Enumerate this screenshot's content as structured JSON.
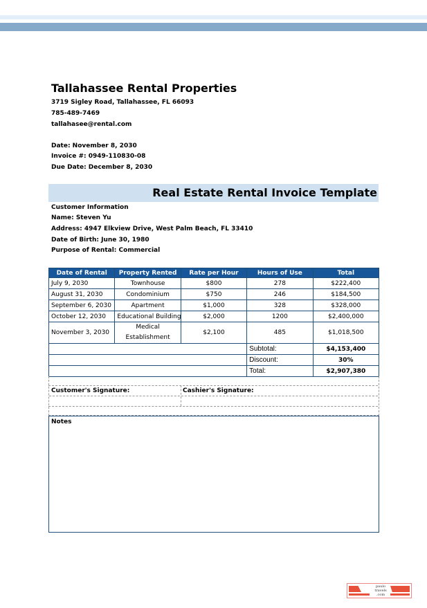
{
  "company": {
    "name": "Tallahassee Rental Properties",
    "address": "3719 Sigley Road, Tallahassee, FL 66093",
    "phone": "785-489-7469",
    "email": "tallahasee@rental.com"
  },
  "invoice": {
    "date": "Date: November 8, 2030",
    "number": "Invoice #: 0949-110830-08",
    "due": "Due Date: December 8, 2030"
  },
  "title": "Real Estate Rental Invoice Template",
  "customer": {
    "heading": "Customer Information",
    "name": "Name: Steven Yu",
    "address": "Address: 4947 Elkview Drive, West Palm Beach, FL 33410",
    "dob": "Date of Birth: June 30, 1980",
    "purpose": "Purpose of Rental: Commercial"
  },
  "table": {
    "headers": [
      "Date of Rental",
      "Property Rented",
      "Rate per Hour",
      "Hours of Use",
      "Total"
    ],
    "rows": [
      [
        "July 9, 2030",
        "Townhouse",
        "$800",
        "278",
        "$222,400"
      ],
      [
        "August 31, 2030",
        "Condominium",
        "$750",
        "246",
        "$184,500"
      ],
      [
        "September 6, 2030",
        "Apartment",
        "$1,000",
        "328",
        "$328,000"
      ],
      [
        "October 12, 2030",
        "Educational Building",
        "$2,000",
        "1200",
        "$2,400,000"
      ],
      [
        "November 3, 2030",
        "Medical Establishment",
        "$2,100",
        "485",
        "$1,018,500"
      ]
    ],
    "subtotal_label": "Subtotal:",
    "subtotal": "$4,153,400",
    "discount_label": "Discount:",
    "discount": "30%",
    "total_label": "Total:",
    "total": "$2,907,380"
  },
  "signatures": {
    "customer": "Customer's Signature:",
    "cashier": "Cashier's Signature:"
  },
  "notes_label": "Notes",
  "logo": {
    "line1": "paulo",
    "line2": "travels",
    "line3": ".com"
  },
  "colors": {
    "header": "#175799",
    "title_bg": "#cfe0f1",
    "band": "#87a9c9"
  }
}
